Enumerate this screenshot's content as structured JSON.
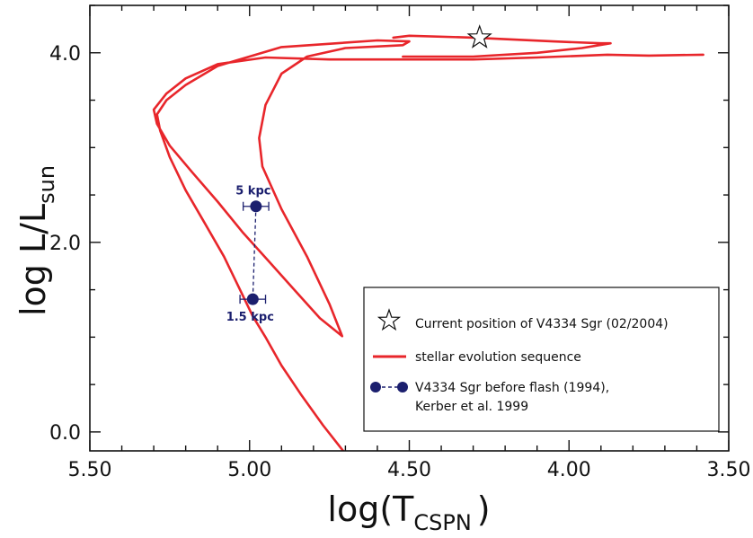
{
  "chart_data": {
    "type": "line",
    "x_axis": {
      "label_main": "log(T",
      "label_sub": "CSPN",
      "label_end": ")",
      "range": [
        5.5,
        3.5
      ],
      "reversed": true,
      "major_ticks": [
        5.5,
        5.0,
        4.5,
        4.0,
        3.5
      ],
      "tick_labels": [
        "5.50",
        "5.00",
        "4.50",
        "4.00",
        "3.50"
      ],
      "minor_step": 0.1
    },
    "y_axis": {
      "label_main": "log L/L",
      "label_sub": "sun",
      "range": [
        -0.2,
        4.5
      ],
      "major_ticks": [
        0,
        2,
        4
      ],
      "tick_labels": [
        "0.0",
        "2.0",
        "4.0"
      ],
      "minor_step": 0.5
    },
    "series": [
      {
        "name": "stellar evolution sequence",
        "color": "#e8262b",
        "x": [
          3.58,
          3.75,
          3.88,
          3.95,
          4.1,
          4.3,
          4.55,
          4.75,
          4.95,
          5.1,
          5.2,
          5.26,
          5.3,
          5.29,
          5.25,
          5.18,
          5.1,
          5.02,
          4.94,
          4.86,
          4.78,
          4.71,
          4.75,
          4.82,
          4.9,
          4.96,
          4.97,
          4.95,
          4.9,
          4.82,
          4.7,
          4.52,
          4.5,
          4.6,
          4.9,
          5.1,
          5.2,
          5.26,
          5.29,
          5.28,
          5.25,
          5.2,
          5.14,
          5.08,
          5.03,
          4.99,
          4.95,
          4.9,
          4.84,
          4.77,
          4.7,
          4.66
        ],
        "y": [
          3.98,
          3.97,
          3.98,
          3.97,
          3.95,
          3.93,
          3.93,
          3.93,
          3.95,
          3.88,
          3.73,
          3.57,
          3.4,
          3.25,
          3.02,
          2.74,
          2.43,
          2.1,
          1.8,
          1.5,
          1.2,
          1.01,
          1.35,
          1.85,
          2.35,
          2.8,
          3.1,
          3.45,
          3.78,
          3.96,
          4.05,
          4.08,
          4.12,
          4.13,
          4.06,
          3.86,
          3.66,
          3.5,
          3.35,
          3.18,
          2.9,
          2.55,
          2.2,
          1.85,
          1.5,
          1.22,
          1.0,
          0.7,
          0.4,
          0.07,
          -0.23,
          -0.42
        ]
      },
      {
        "name": "",
        "color": "#e8262b",
        "x": [
          4.52,
          4.3,
          4.1,
          3.96,
          3.87,
          3.9,
          4.05,
          4.3,
          4.5,
          4.55
        ],
        "y": [
          3.96,
          3.96,
          4.0,
          4.05,
          4.1,
          4.1,
          4.12,
          4.16,
          4.18,
          4.16
        ]
      }
    ],
    "observations": [
      {
        "label": "5 kpc",
        "x": 4.98,
        "y": 2.38,
        "xerr": 0.04
      },
      {
        "label": "1.5 kpc",
        "x": 4.99,
        "y": 1.4,
        "xerr": 0.04
      }
    ],
    "current_position": {
      "x": 4.28,
      "y": 4.16
    },
    "legend": {
      "position": "bottom-right",
      "items": [
        {
          "symbol": "star-icon",
          "label": "Current position of V4334 Sgr (02/2004)"
        },
        {
          "symbol": "red-line",
          "label": "stellar evolution sequence"
        },
        {
          "symbol": "blue-dots-dashed",
          "label_line1": "V4334 Sgr before flash (1994),",
          "label_line2": "Kerber et al. 1999"
        }
      ]
    },
    "colors": {
      "track": "#e8262b",
      "observation": "#1b1f6e",
      "axis": "#111111"
    },
    "grid": false
  }
}
